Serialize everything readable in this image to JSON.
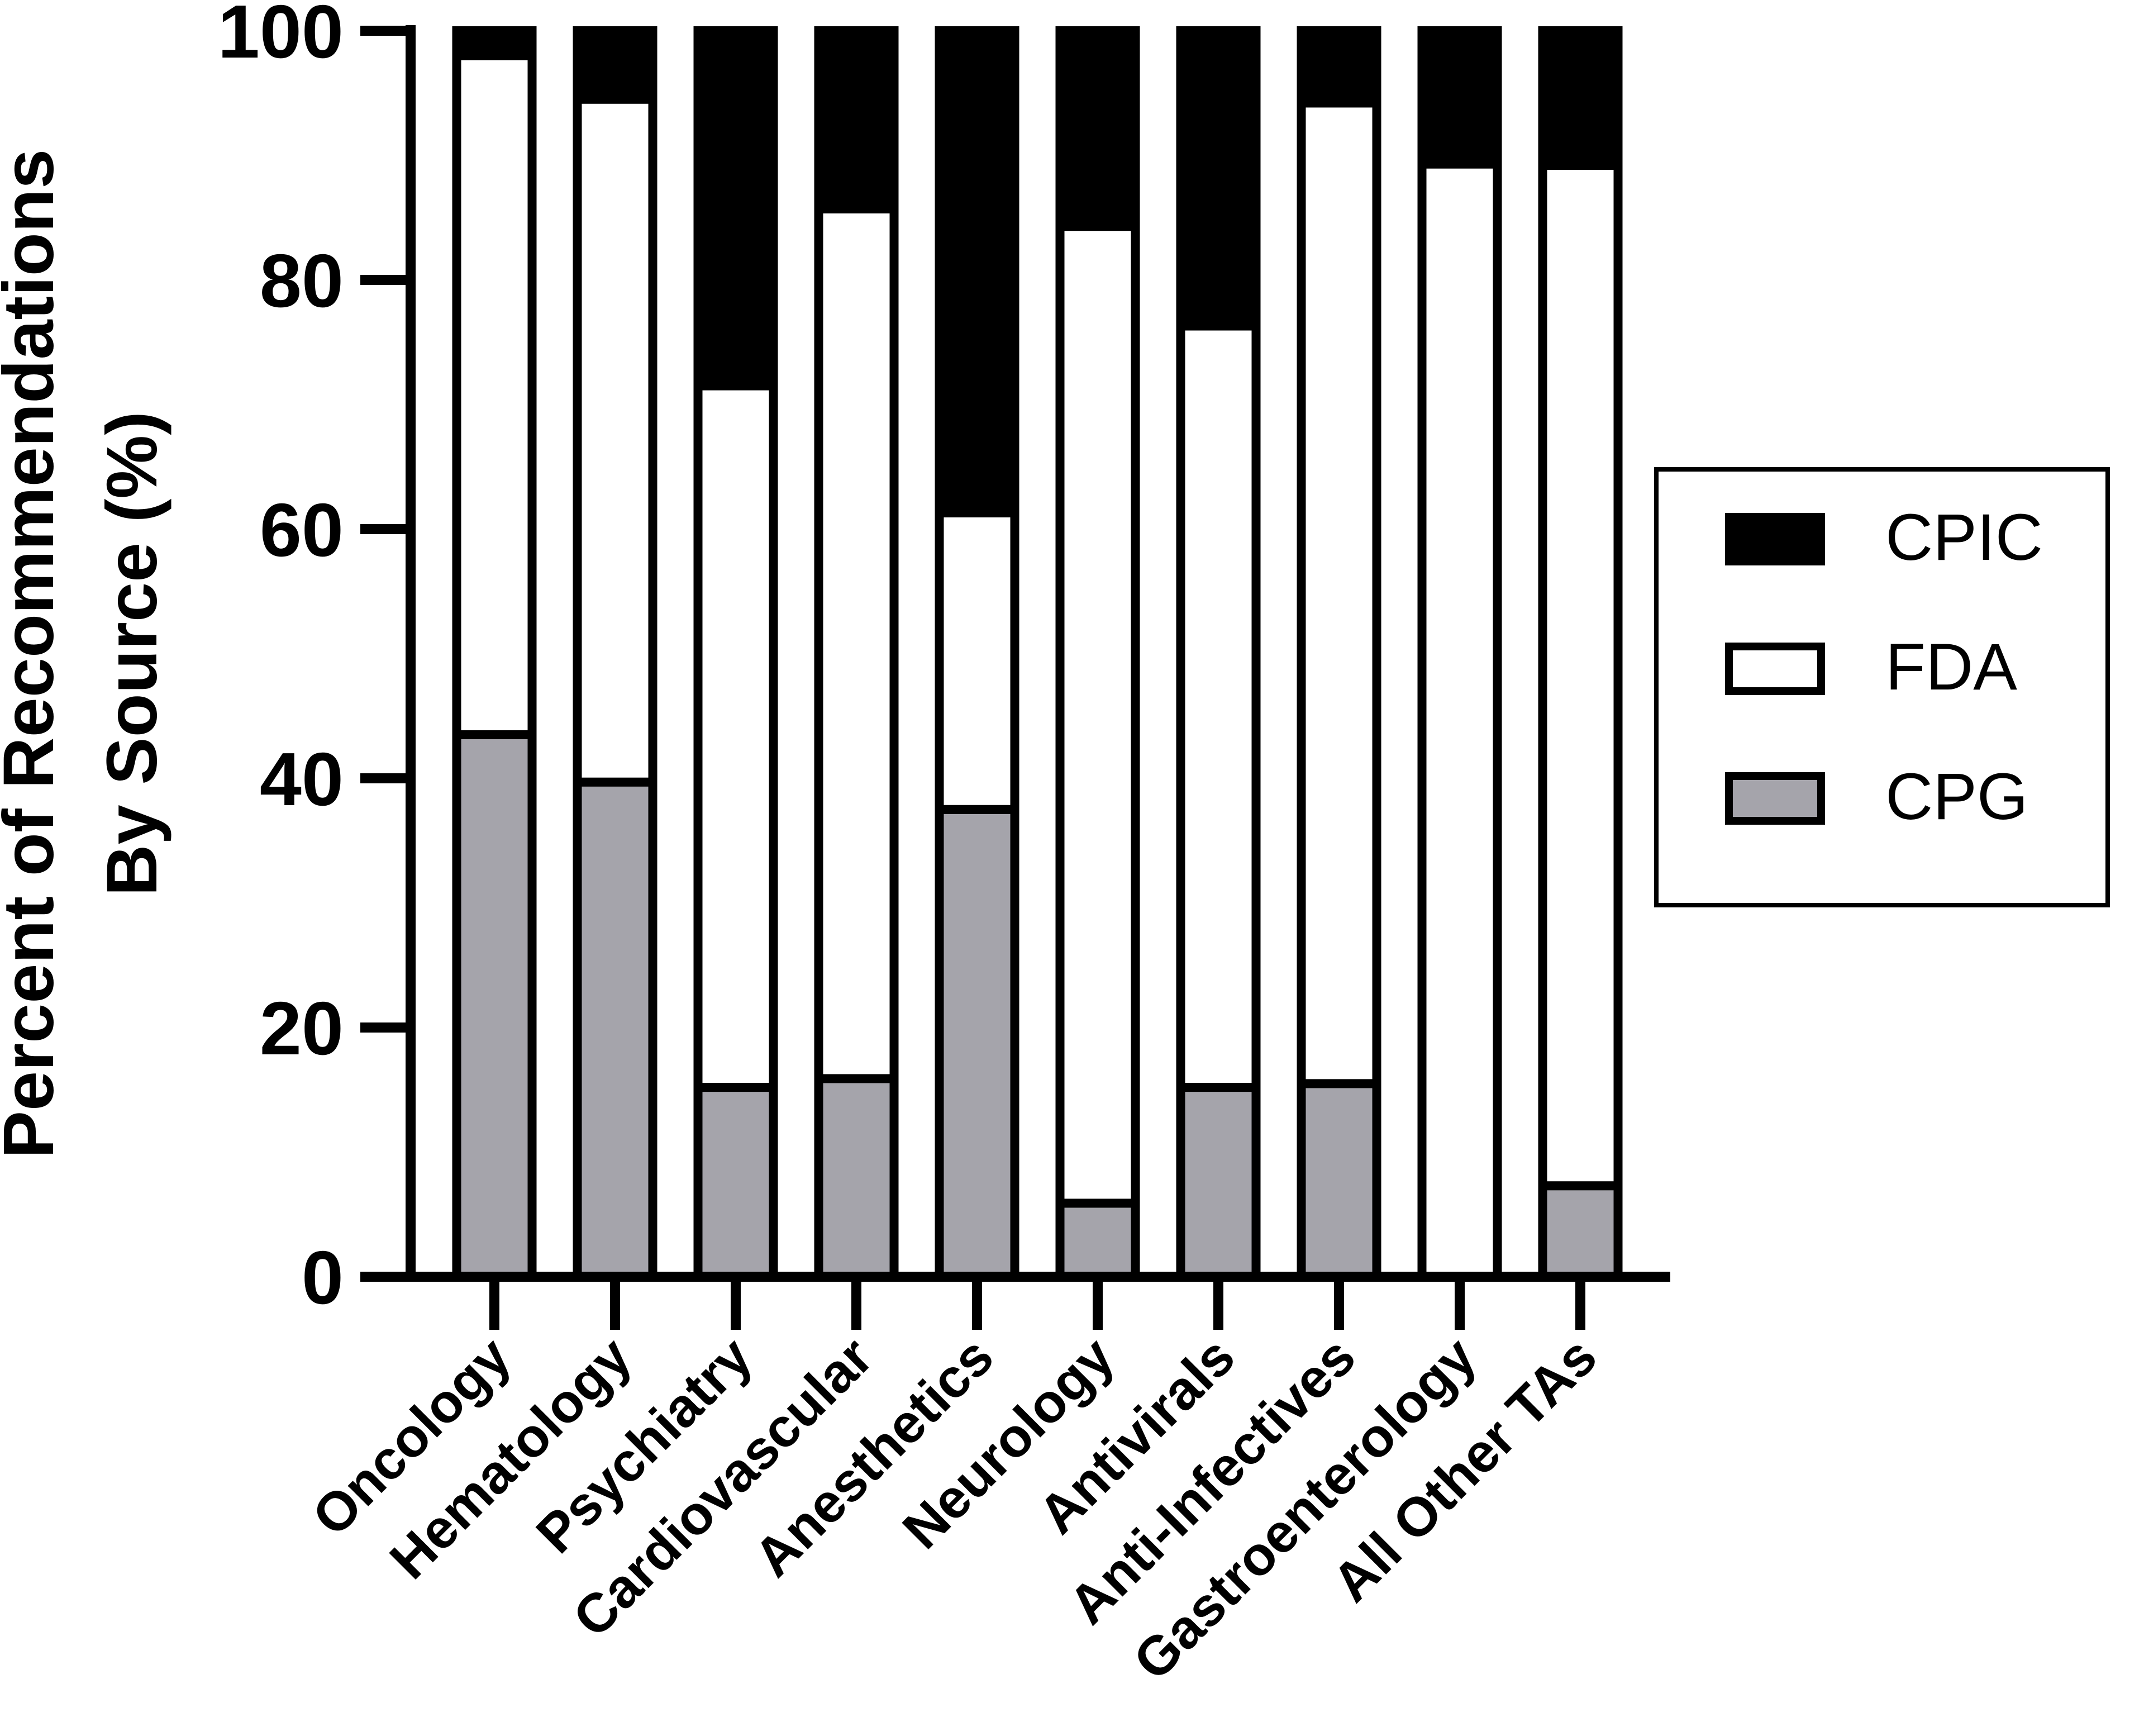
{
  "chart_data": {
    "type": "bar",
    "stacked": true,
    "ylabel_lines": [
      "Percent of Recommendations",
      "By Source (%)"
    ],
    "xlabel": "",
    "ylim": [
      0,
      100
    ],
    "yticks": [
      0,
      20,
      40,
      60,
      80,
      100
    ],
    "ytick_labels": [
      "0",
      "20",
      "40",
      "60",
      "80",
      "100"
    ],
    "grid": false,
    "legend_position": "right",
    "categories": [
      "Oncology",
      "Hematology",
      "Psychiatry",
      "Cardiovascular",
      "Anesthetics",
      "Neurology",
      "Antivirals",
      "Anti-Infectives",
      "Gastroenterology",
      "All Other TAs"
    ],
    "series": [
      {
        "name": "CPG",
        "color": "#a5a4ab",
        "values": [
          43.5,
          39.7,
          15.2,
          15.9,
          37.5,
          5.9,
          15.2,
          15.5,
          0,
          7.3
        ]
      },
      {
        "name": "FDA",
        "color": "#ffffff",
        "values": [
          54.5,
          54.8,
          56.3,
          69.8,
          23.8,
          78.4,
          61.1,
          78.7,
          89.3,
          81.9
        ]
      },
      {
        "name": "CPIC",
        "color": "#000000",
        "values": [
          2.0,
          5.5,
          28.5,
          14.3,
          38.7,
          15.7,
          23.7,
          5.8,
          10.7,
          10.8
        ]
      }
    ],
    "legend": [
      {
        "name": "CPIC",
        "color": "#000000"
      },
      {
        "name": "FDA",
        "color": "#ffffff"
      },
      {
        "name": "CPG",
        "color": "#a5a4ab"
      }
    ]
  }
}
